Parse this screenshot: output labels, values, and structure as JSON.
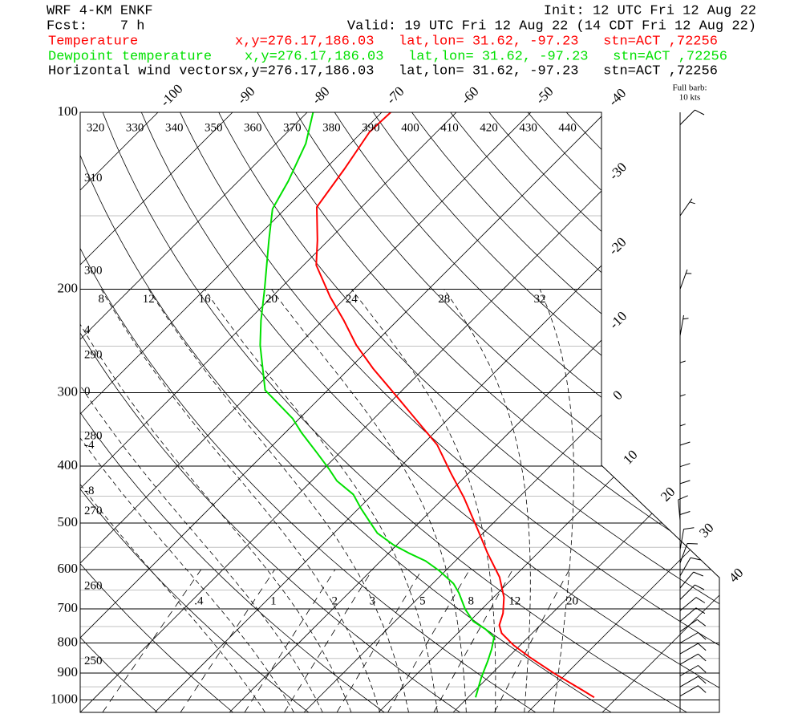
{
  "chart_data": {
    "type": "skewt",
    "title": "WRF 4-KM ENKF",
    "init": "Init: 12 UTC Fri 12 Aug 22",
    "forecast": "Fcst:    7 h",
    "valid": "Valid: 19 UTC Fri 12 Aug 22 (14 CDT Fri 12 Aug 22)",
    "ylim": [
      1050,
      100
    ],
    "ylog": true,
    "yticks": [
      100,
      200,
      300,
      400,
      500,
      600,
      700,
      800,
      900,
      1000
    ],
    "yminor": [
      150,
      250,
      350,
      450,
      550,
      650,
      750,
      850,
      950
    ],
    "xlim": [
      -30,
      55.7
    ],
    "xticks": [
      -100,
      -90,
      -80,
      -70,
      -60,
      -50,
      -40,
      -30,
      -20,
      -10,
      0,
      10,
      20,
      30,
      40
    ],
    "theta_lines": [
      250,
      260,
      270,
      280,
      290,
      300,
      310,
      320,
      330,
      340,
      350,
      360,
      370,
      380,
      390,
      400,
      410,
      420,
      430,
      440
    ],
    "moist_lines": [
      -8,
      -4,
      0,
      4,
      8,
      12,
      16,
      20,
      24,
      28,
      32
    ],
    "mixing_ratio_lines": [
      {
        "value": 0.4,
        "label": ".4"
      },
      1,
      2,
      3,
      5,
      8,
      12,
      20
    ],
    "barb_legend": [
      "Full barb:",
      "10 kts"
    ],
    "series": [
      {
        "name": "Temperature",
        "color": "#ff0000",
        "location": "x,y=276.17,186.03   lat,lon= 31.62, -97.23   stn=ACT ,72256",
        "pressures": [
          990,
          966,
          901,
          846,
          807,
          770,
          746,
          712,
          669,
          618,
          563,
          512,
          452,
          411,
          368,
          335,
          305,
          273,
          249,
          226,
          206,
          182,
          165,
          145,
          125,
          108,
          100
        ],
        "values": [
          36.9,
          34.7,
          28.3,
          22.9,
          19.1,
          15.9,
          14.5,
          13.4,
          11.4,
          8.1,
          3.3,
          -1.3,
          -7.4,
          -12.4,
          -18.0,
          -23.9,
          -29.8,
          -36.8,
          -42.2,
          -47.2,
          -52.2,
          -58.3,
          -61.5,
          -66.0,
          -67.4,
          -69.0,
          -68.8
        ]
      },
      {
        "name": "Dewpoint temperature",
        "color": "#00e000",
        "location": "x,y=276.17,186.03   lat,lon= 31.62, -97.23   stn=ACT ,72256",
        "pressures": [
          990,
          916,
          860,
          820,
          782,
          758,
          735,
          701,
          658,
          634,
          603,
          580,
          563,
          545,
          520,
          496,
          473,
          447,
          424,
          405,
          380,
          351,
          332,
          297,
          273,
          249,
          226,
          200,
          165,
          146,
          131,
          113,
          100
        ],
        "values": [
          21.0,
          19.1,
          17.8,
          16.7,
          15.4,
          13.2,
          10.5,
          7.8,
          4.8,
          2.8,
          -0.8,
          -4.0,
          -7.2,
          -10.4,
          -14.2,
          -16.9,
          -19.6,
          -22.6,
          -26.6,
          -29.2,
          -33.0,
          -37.8,
          -40.9,
          -48.4,
          -51.6,
          -55.1,
          -58.3,
          -62.0,
          -68.0,
          -71.7,
          -73.3,
          -76.0,
          -79.2
        ]
      },
      {
        "name": "Horizontal wind vectors",
        "color": "#000000",
        "location": "x,y=276.17,186.03   lat,lon= 31.62, -97.23   stn=ACT ,72256",
        "pressures": [
          105,
          150,
          200,
          240,
          285,
          325,
          365,
          400,
          435,
          465,
          495,
          525,
          555,
          585,
          615,
          645,
          675,
          705,
          735,
          765,
          800,
          835,
          870,
          910,
          950,
          985
        ],
        "values": [
          10,
          5,
          5,
          5,
          5,
          5,
          5,
          10,
          10,
          10,
          10,
          10,
          10,
          10,
          10,
          10,
          10,
          10,
          10,
          10,
          10,
          10,
          10,
          10,
          10,
          10
        ],
        "directions": [
          45,
          35,
          20,
          10,
          0,
          0,
          0,
          0,
          0,
          0,
          355,
          0,
          10,
          20,
          30,
          40,
          45,
          50,
          50,
          55,
          60,
          60,
          60,
          60,
          60,
          60
        ]
      }
    ]
  }
}
